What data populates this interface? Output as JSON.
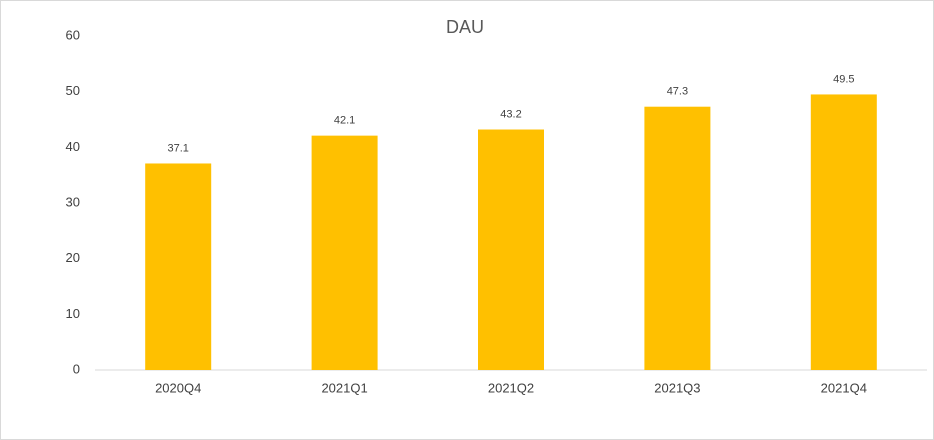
{
  "chart_data": {
    "type": "bar",
    "title": "DAU",
    "categories": [
      "2020Q4",
      "2021Q1",
      "2021Q2",
      "2021Q3",
      "2021Q4"
    ],
    "values": [
      37.1,
      42.1,
      43.2,
      47.3,
      49.5
    ],
    "color": "#ffc000",
    "ylim": [
      0,
      60
    ],
    "yticks": [
      0,
      10,
      20,
      30,
      40,
      50,
      60
    ],
    "grid": false
  }
}
